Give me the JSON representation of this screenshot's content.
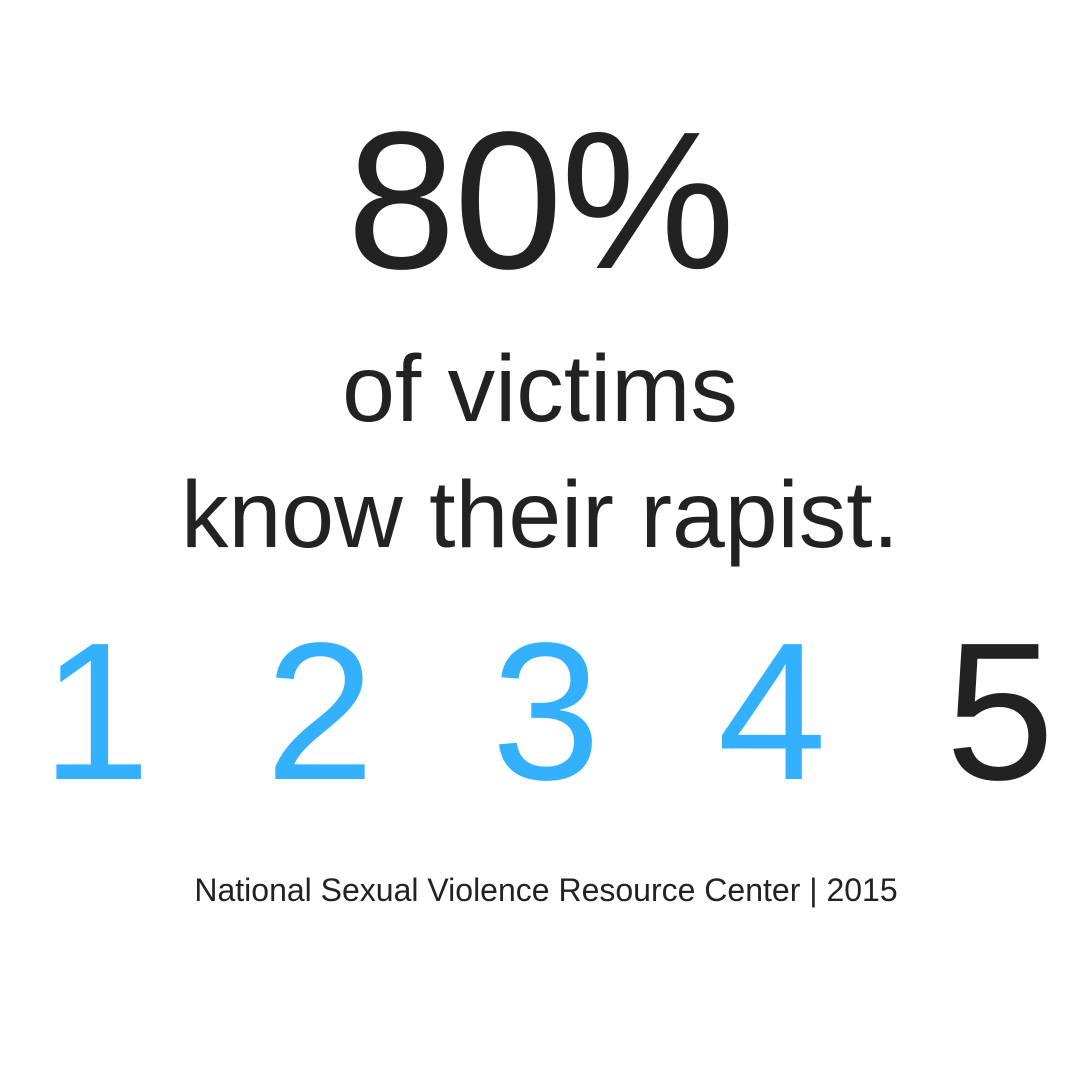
{
  "headline": {
    "stat": "80%",
    "line1": "of victims",
    "line2": "know their rapist."
  },
  "scale": {
    "digits": [
      {
        "label": "1",
        "color": "#33b1ff"
      },
      {
        "label": "2",
        "color": "#33b1ff"
      },
      {
        "label": "3",
        "color": "#33b1ff"
      },
      {
        "label": "4",
        "color": "#33b1ff"
      },
      {
        "label": "5",
        "color": "#222222"
      }
    ],
    "highlighted_count": 4,
    "total": 5
  },
  "source": {
    "text": "National Sexual Violence Resource Center | 2015"
  },
  "colors": {
    "text": "#222222",
    "accent": "#33b1ff",
    "background": "#ffffff"
  }
}
